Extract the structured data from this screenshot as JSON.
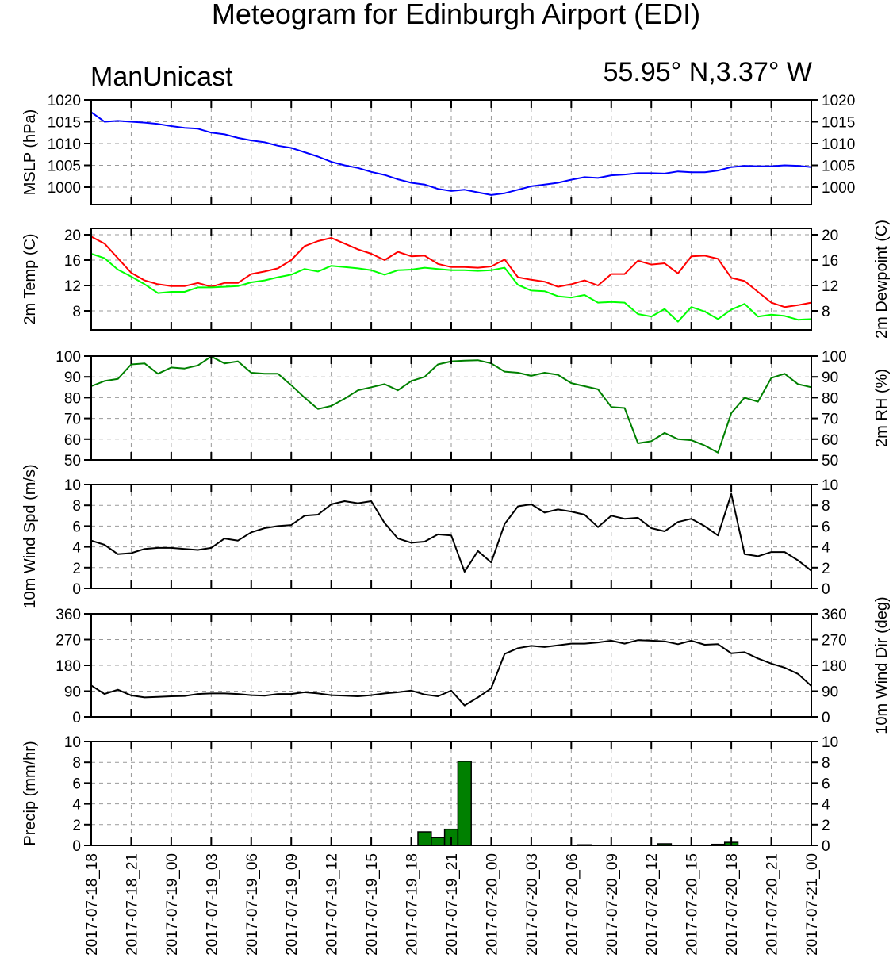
{
  "title": "Meteogram for Edinburgh Airport (EDI)",
  "model_label": "ManUnicast",
  "location_label": "55.95° N,3.37° W",
  "colors": {
    "mslp": "#0000ff",
    "temp": "#ff0000",
    "dewpoint": "#00ff00",
    "rh": "#008000",
    "wind": "#000000",
    "precip_fill": "#008000"
  },
  "chart_data": [
    {
      "id": "mslp",
      "type": "line",
      "ylabel": "MSLP (hPa)",
      "ylabel_right": "",
      "ylim": [
        996,
        1020
      ],
      "yticks": [
        1000,
        1005,
        1010,
        1015,
        1020
      ],
      "ytick_labels": [
        "1000",
        "1005",
        "1010",
        "1015",
        "1020"
      ],
      "grid": true,
      "series": [
        {
          "color_key": "mslp",
          "values": [
            1017.2,
            1015.0,
            1015.2,
            1015.0,
            1014.8,
            1014.5,
            1014.0,
            1013.6,
            1013.4,
            1012.5,
            1012.1,
            1011.3,
            1010.7,
            1010.3,
            1009.5,
            1009.0,
            1008.0,
            1007.0,
            1005.8,
            1005.0,
            1004.4,
            1003.5,
            1002.8,
            1001.8,
            1001.0,
            1000.6,
            999.6,
            999.1,
            999.4,
            998.8,
            998.2,
            998.6,
            999.4,
            1000.2,
            1000.6,
            1001.0,
            1001.7,
            1002.3,
            1002.1,
            1002.7,
            1002.9,
            1003.2,
            1003.2,
            1003.1,
            1003.6,
            1003.4,
            1003.4,
            1003.8,
            1004.6,
            1004.9,
            1004.8,
            1004.8,
            1005.0,
            1004.9,
            1004.6
          ]
        }
      ]
    },
    {
      "id": "temp",
      "type": "line",
      "ylabel": "2m Temp (C)",
      "ylabel_right": "2m Dewpoint (C)",
      "ylim": [
        5,
        21
      ],
      "yticks": [
        8,
        12,
        16,
        20
      ],
      "ytick_labels": [
        "8",
        "12",
        "16",
        "20"
      ],
      "grid": true,
      "series": [
        {
          "color_key": "temp",
          "values": [
            19.7,
            18.6,
            16.3,
            14.0,
            12.8,
            12.2,
            11.9,
            11.9,
            12.4,
            11.8,
            12.4,
            12.4,
            13.8,
            14.2,
            14.7,
            16.0,
            18.2,
            19.0,
            19.5,
            18.6,
            17.7,
            17.0,
            16.0,
            17.3,
            16.6,
            16.7,
            15.4,
            14.9,
            14.9,
            14.8,
            15.0,
            16.1,
            13.3,
            12.9,
            12.6,
            11.8,
            12.2,
            12.8,
            12.0,
            13.8,
            13.8,
            15.9,
            15.3,
            15.5,
            13.9,
            16.6,
            16.7,
            16.2,
            13.2,
            12.7,
            11.0,
            9.3,
            8.6,
            8.9,
            9.3
          ]
        },
        {
          "color_key": "dewpoint",
          "values": [
            17.0,
            16.3,
            14.5,
            13.4,
            12.2,
            10.8,
            11.0,
            11.0,
            11.7,
            11.7,
            11.8,
            11.9,
            12.5,
            12.8,
            13.3,
            13.7,
            14.6,
            14.2,
            15.1,
            14.9,
            14.7,
            14.4,
            13.7,
            14.4,
            14.5,
            14.8,
            14.6,
            14.4,
            14.4,
            14.3,
            14.4,
            14.8,
            12.1,
            11.2,
            11.1,
            10.3,
            10.1,
            10.5,
            9.3,
            9.4,
            9.3,
            7.5,
            7.1,
            8.3,
            6.3,
            8.6,
            7.9,
            6.7,
            8.2,
            9.1,
            7.1,
            7.4,
            7.2,
            6.6,
            6.7
          ]
        }
      ]
    },
    {
      "id": "rh",
      "type": "line",
      "ylabel": "",
      "ylabel_right": "2m RH (%)",
      "ylim": [
        50,
        100
      ],
      "yticks": [
        50,
        60,
        70,
        80,
        90,
        100
      ],
      "ytick_labels": [
        "50",
        "60",
        "70",
        "80",
        "90",
        "100"
      ],
      "grid": true,
      "series": [
        {
          "color_key": "rh",
          "values": [
            85.5,
            88.0,
            89.0,
            96.0,
            96.5,
            91.5,
            94.5,
            94.0,
            95.5,
            99.8,
            96.5,
            97.5,
            92.0,
            91.5,
            91.5,
            86.0,
            80.0,
            74.5,
            76.0,
            79.5,
            83.5,
            85.0,
            86.5,
            83.5,
            88.0,
            90.0,
            96.0,
            97.5,
            97.8,
            98.0,
            96.5,
            92.5,
            92.0,
            90.5,
            92.0,
            91.0,
            87.0,
            85.5,
            84.0,
            75.5,
            75.0,
            58.0,
            59.0,
            63.0,
            60.0,
            59.5,
            57.0,
            53.5,
            72.5,
            80.0,
            78.0,
            89.5,
            91.5,
            86.5,
            85.0
          ]
        }
      ]
    },
    {
      "id": "wind_spd",
      "type": "line",
      "ylabel": "10m Wind Spd (m/s)",
      "ylabel_right": "",
      "ylim": [
        0,
        10
      ],
      "yticks": [
        0,
        2,
        4,
        6,
        8,
        10
      ],
      "ytick_labels": [
        "0",
        "2",
        "4",
        "6",
        "8",
        "10"
      ],
      "grid": true,
      "series": [
        {
          "color_key": "wind",
          "values": [
            4.6,
            4.2,
            3.3,
            3.4,
            3.8,
            3.9,
            3.9,
            3.8,
            3.7,
            3.9,
            4.8,
            4.6,
            5.4,
            5.8,
            6.0,
            6.1,
            7.0,
            7.1,
            8.1,
            8.4,
            8.2,
            8.4,
            6.3,
            4.8,
            4.4,
            4.5,
            5.2,
            5.1,
            1.6,
            3.6,
            2.5,
            6.2,
            7.9,
            8.1,
            7.3,
            7.6,
            7.4,
            7.1,
            5.9,
            7.0,
            6.7,
            6.8,
            5.8,
            5.5,
            6.4,
            6.7,
            6.0,
            5.1,
            9.1,
            3.3,
            3.1,
            3.5,
            3.5,
            2.7,
            1.7
          ]
        }
      ]
    },
    {
      "id": "wind_dir",
      "type": "line",
      "ylabel": "",
      "ylabel_right": "10m Wind Dir (deg)",
      "ylim": [
        0,
        360
      ],
      "yticks": [
        0,
        90,
        180,
        270,
        360
      ],
      "ytick_labels": [
        "0",
        "90",
        "180",
        "270",
        "360"
      ],
      "grid": true,
      "series": [
        {
          "color_key": "wind",
          "values": [
            110,
            80,
            95,
            75,
            68,
            70,
            72,
            73,
            80,
            82,
            82,
            80,
            76,
            74,
            80,
            80,
            86,
            82,
            76,
            74,
            72,
            76,
            82,
            86,
            92,
            78,
            72,
            92,
            40,
            68,
            100,
            220,
            240,
            248,
            244,
            250,
            256,
            256,
            260,
            266,
            256,
            268,
            266,
            264,
            254,
            266,
            252,
            254,
            222,
            226,
            204,
            186,
            172,
            150,
            108
          ]
        }
      ]
    },
    {
      "id": "precip",
      "type": "bar",
      "ylabel": "Precip (mm/hr)",
      "ylabel_right": "",
      "ylim": [
        0,
        10
      ],
      "yticks": [
        0,
        2,
        4,
        6,
        8,
        10
      ],
      "ytick_labels": [
        "0",
        "2",
        "4",
        "6",
        "8",
        "10"
      ],
      "grid": true,
      "bars": [
        {
          "x": 25,
          "value": 1.3
        },
        {
          "x": 26,
          "value": 0.75
        },
        {
          "x": 27,
          "value": 1.55
        },
        {
          "x": 28,
          "value": 8.1
        },
        {
          "x": 37,
          "value": 0.05
        },
        {
          "x": 43,
          "value": 0.15
        },
        {
          "x": 47,
          "value": 0.1
        },
        {
          "x": 48,
          "value": 0.3
        }
      ]
    }
  ],
  "x_axis": {
    "xlim": [
      0,
      54
    ],
    "tick_positions": [
      0,
      3,
      6,
      9,
      12,
      15,
      18,
      21,
      24,
      27,
      30,
      33,
      36,
      39,
      42,
      45,
      48,
      51,
      54
    ],
    "tick_labels": [
      "2017-07-18_18",
      "2017-07-18_21",
      "2017-07-19_00",
      "2017-07-19_03",
      "2017-07-19_06",
      "2017-07-19_09",
      "2017-07-19_12",
      "2017-07-19_15",
      "2017-07-19_18",
      "2017-07-19_21",
      "2017-07-20_00",
      "2017-07-20_03",
      "2017-07-20_06",
      "2017-07-20_09",
      "2017-07-20_12",
      "2017-07-20_15",
      "2017-07-20_18",
      "2017-07-20_21",
      "2017-07-21_00"
    ]
  }
}
